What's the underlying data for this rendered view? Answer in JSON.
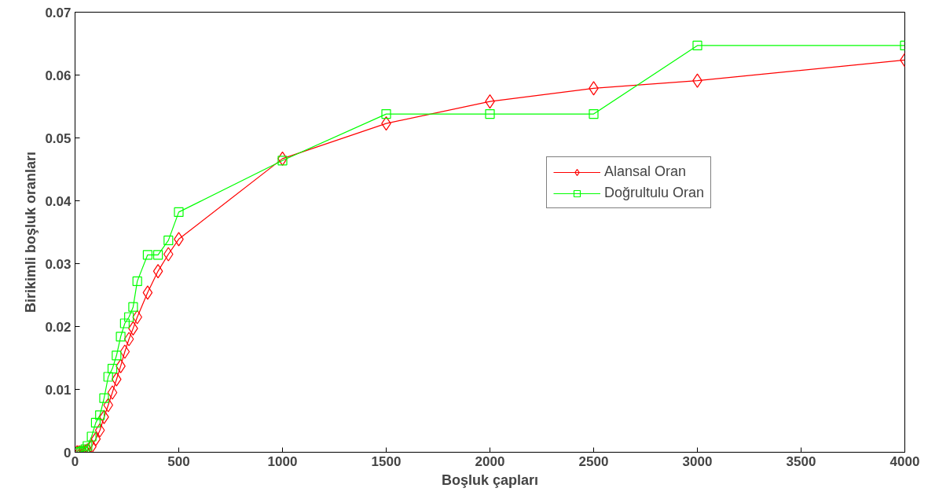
{
  "chart_data": {
    "type": "line",
    "xlabel": "Boşluk çapları",
    "ylabel": "Birikimli boşluk oranları",
    "x": [
      10,
      20,
      30,
      40,
      50,
      60,
      80,
      100,
      120,
      140,
      160,
      180,
      200,
      220,
      240,
      260,
      280,
      300,
      350,
      400,
      450,
      500,
      1000,
      1500,
      2000,
      2500,
      3000,
      4000
    ],
    "series": [
      {
        "name": "Alansal Oran",
        "color": "#ff0000",
        "marker": "diamond",
        "values": [
          0,
          0,
          0,
          0,
          0.0001,
          0.0003,
          0.0009,
          0.0021,
          0.0035,
          0.0056,
          0.0075,
          0.0095,
          0.0116,
          0.0137,
          0.016,
          0.018,
          0.0197,
          0.0215,
          0.0254,
          0.0288,
          0.0315,
          0.0339,
          0.0467,
          0.0523,
          0.0558,
          0.0579,
          0.0591,
          0.0624
        ]
      },
      {
        "name": "Doğrultulu Oran",
        "color": "#00ff00",
        "marker": "square",
        "values": [
          0,
          0,
          0.0001,
          0.0002,
          0.0005,
          0.001,
          0.0025,
          0.0047,
          0.0059,
          0.0086,
          0.012,
          0.0133,
          0.0154,
          0.0184,
          0.0205,
          0.0215,
          0.0231,
          0.0272,
          0.0314,
          0.0314,
          0.0337,
          0.0382,
          0.0464,
          0.0538,
          0.0538,
          0.0538,
          0.0647,
          0.0647
        ]
      }
    ],
    "xlim": [
      0,
      4000
    ],
    "ylim": [
      0,
      0.07
    ],
    "xticks": [
      0,
      500,
      1000,
      1500,
      2000,
      2500,
      3000,
      3500,
      4000
    ],
    "yticks": [
      0,
      0.01,
      0.02,
      0.03,
      0.04,
      0.05,
      0.06,
      0.07
    ],
    "grid": false,
    "legend": "right",
    "line_style": "solid"
  }
}
